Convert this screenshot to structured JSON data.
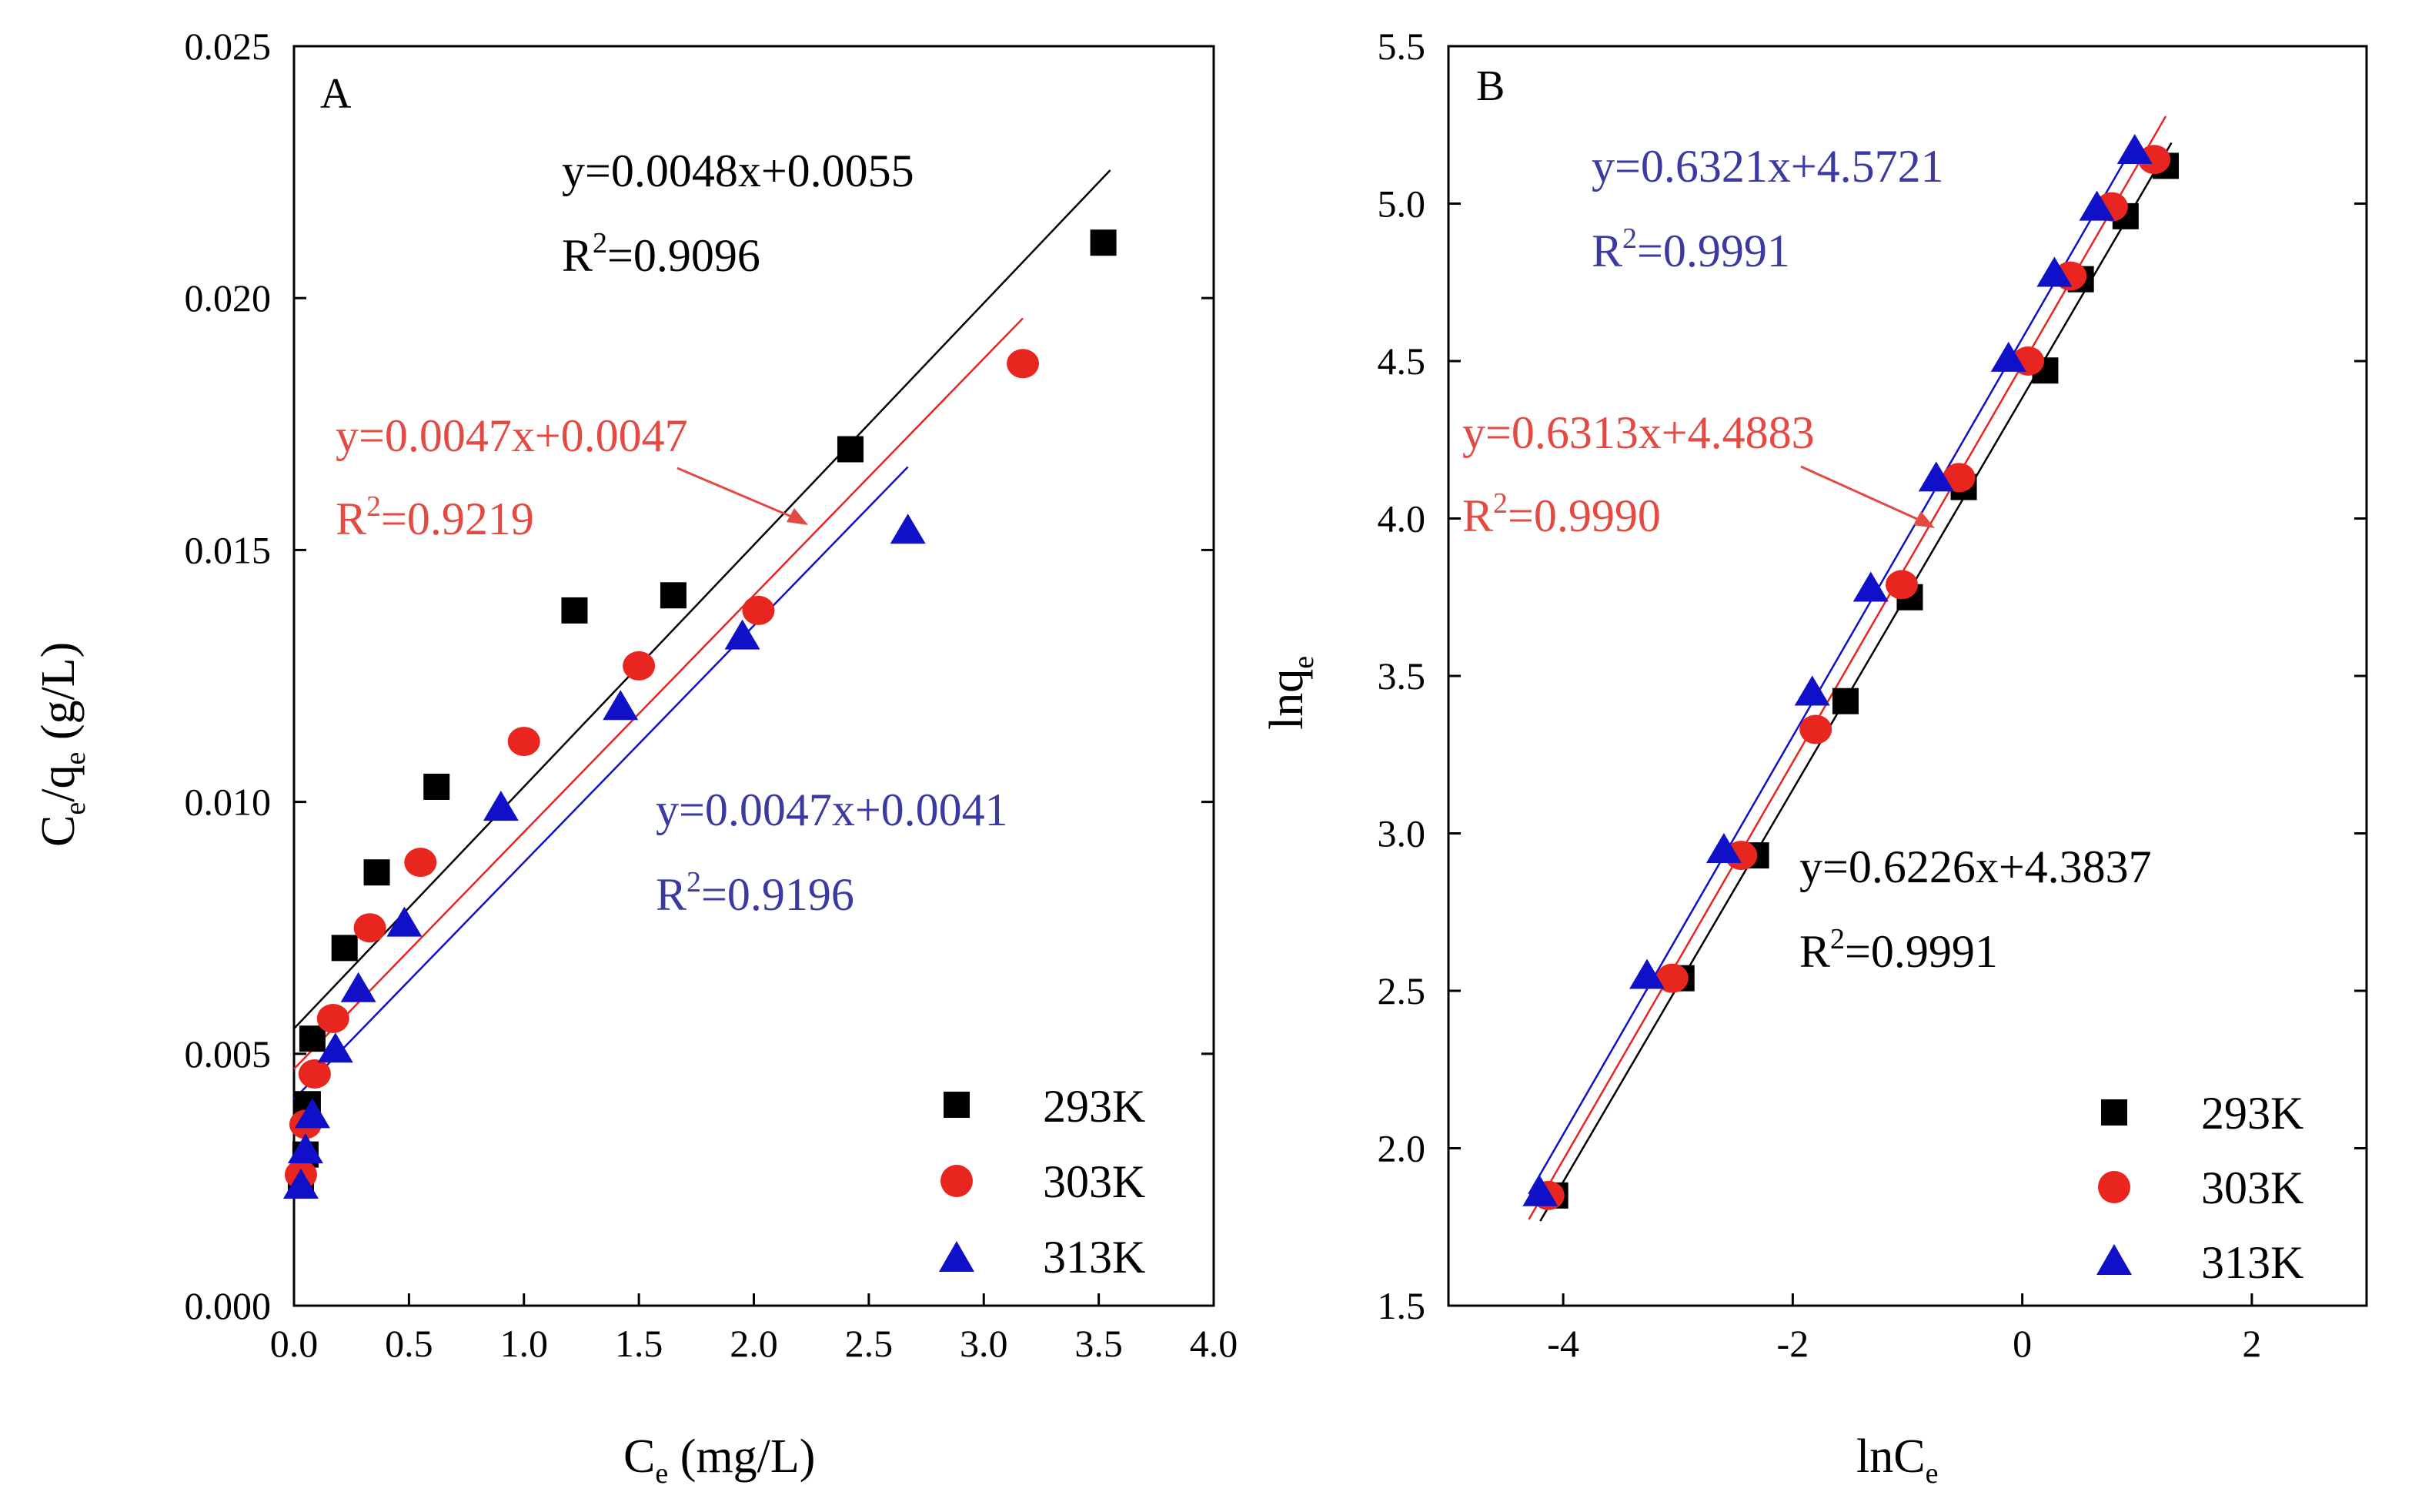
{
  "chart_data": [
    {
      "type": "scatter",
      "panel": "A",
      "xlabel": "C_e (mg/L)",
      "xlabel_main": "C",
      "xlabel_sub": "e",
      "xlabel_unit": " (mg/L)",
      "ylabel": "C_e/q_e (g/L)",
      "ylabel_main1": "C",
      "ylabel_sub1": "e",
      "ylabel_mid": "/q",
      "ylabel_sub2": "e",
      "ylabel_unit": " (g/L)",
      "xlim": [
        0,
        4.0
      ],
      "ylim": [
        0,
        0.025
      ],
      "xticks": [
        0,
        0.5,
        1.0,
        1.5,
        2.0,
        2.5,
        3.0,
        3.5,
        4.0
      ],
      "xtick_labels": [
        "0.0",
        "0.5",
        "1.0",
        "1.5",
        "2.0",
        "2.5",
        "3.0",
        "3.5",
        "4.0"
      ],
      "yticks": [
        0,
        0.005,
        0.01,
        0.015,
        0.02,
        0.025
      ],
      "ytick_labels": [
        "0.000",
        "0.005",
        "0.010",
        "0.015",
        "0.020",
        "0.025"
      ],
      "series": [
        {
          "name": "293K",
          "marker": "square",
          "color": "#000000",
          "points": [
            [
              0.03,
              0.0025
            ],
            [
              0.05,
              0.003
            ],
            [
              0.06,
              0.004
            ],
            [
              0.08,
              0.0053
            ],
            [
              0.22,
              0.0071
            ],
            [
              0.36,
              0.0086
            ],
            [
              0.62,
              0.0103
            ],
            [
              1.22,
              0.0138
            ],
            [
              1.65,
              0.0141
            ],
            [
              2.42,
              0.017
            ],
            [
              3.52,
              0.0211
            ]
          ],
          "fit": {
            "slope": 0.0048,
            "intercept": 0.0055,
            "x_range": [
              0.0,
              3.55
            ],
            "equation": "y=0.0048x+0.0055",
            "r2_label": "R",
            "r2_sup": "2",
            "r2_value": "=0.9096",
            "eq_color": "#000000"
          }
        },
        {
          "name": "303K",
          "marker": "circle",
          "color": "#e8261f",
          "points": [
            [
              0.03,
              0.0026
            ],
            [
              0.05,
              0.0036
            ],
            [
              0.09,
              0.0046
            ],
            [
              0.17,
              0.0057
            ],
            [
              0.33,
              0.0075
            ],
            [
              0.55,
              0.0088
            ],
            [
              1.0,
              0.0112
            ],
            [
              1.5,
              0.0127
            ],
            [
              2.02,
              0.0138
            ],
            [
              3.17,
              0.0187
            ]
          ],
          "fit": {
            "slope": 0.0047,
            "intercept": 0.0047,
            "x_range": [
              0.0,
              3.17
            ],
            "equation": "y=0.0047x+0.0047",
            "r2_label": "R",
            "r2_sup": "2",
            "r2_value": "=0.9219",
            "eq_color": "#e24a42"
          }
        },
        {
          "name": "313K",
          "marker": "triangle",
          "color": "#1010c8",
          "points": [
            [
              0.03,
              0.0024
            ],
            [
              0.05,
              0.0031
            ],
            [
              0.08,
              0.0038
            ],
            [
              0.18,
              0.0051
            ],
            [
              0.28,
              0.0063
            ],
            [
              0.48,
              0.0076
            ],
            [
              0.9,
              0.0099
            ],
            [
              1.42,
              0.0119
            ],
            [
              1.95,
              0.0133
            ],
            [
              2.67,
              0.0154
            ]
          ],
          "fit": {
            "slope": 0.0047,
            "intercept": 0.0041,
            "x_range": [
              0.0,
              2.67
            ],
            "equation": "y=0.0047x+0.0041",
            "r2_label": "R",
            "r2_sup": "2",
            "r2_value": "=0.9196",
            "eq_color": "#3a3aa0"
          }
        }
      ],
      "legend": [
        "293K",
        "303K",
        "313K"
      ],
      "legend_position": "bottom-right"
    },
    {
      "type": "scatter",
      "panel": "B",
      "xlabel": "lnC_e",
      "xlabel_main": "lnC",
      "xlabel_sub": "e",
      "xlabel_unit": "",
      "ylabel": "lnq_e",
      "ylabel_main1": "lnq",
      "ylabel_sub1": "e",
      "ylabel_mid": "",
      "ylabel_sub2": "",
      "ylabel_unit": "",
      "xlim": [
        -5.0,
        3.0
      ],
      "ylim": [
        1.5,
        5.5
      ],
      "xticks": [
        -4,
        -2,
        0,
        2
      ],
      "xtick_labels": [
        "-4",
        "-2",
        "0",
        "2"
      ],
      "yticks": [
        1.5,
        2.0,
        2.5,
        3.0,
        3.5,
        4.0,
        4.5,
        5.0,
        5.5
      ],
      "ytick_labels": [
        "1.5",
        "2.0",
        "2.5",
        "3.0",
        "3.5",
        "4.0",
        "4.5",
        "5.0",
        "5.5"
      ],
      "series": [
        {
          "name": "293K",
          "marker": "square",
          "color": "#000000",
          "points": [
            [
              -4.07,
              1.85
            ],
            [
              -2.97,
              2.54
            ],
            [
              -2.32,
              2.93
            ],
            [
              -1.54,
              3.42
            ],
            [
              -0.98,
              3.75
            ],
            [
              -0.51,
              4.1
            ],
            [
              0.2,
              4.47
            ],
            [
              0.51,
              4.76
            ],
            [
              0.9,
              4.96
            ],
            [
              1.25,
              5.12
            ]
          ],
          "fit": {
            "slope": 0.6226,
            "intercept": 4.3837,
            "x_range": [
              -4.2,
              1.3
            ],
            "equation": "y=0.6226x+4.3837",
            "r2_label": "R",
            "r2_sup": "2",
            "r2_value": "=0.9991",
            "eq_color": "#000000"
          }
        },
        {
          "name": "303K",
          "marker": "circle",
          "color": "#e8261f",
          "points": [
            [
              -4.13,
              1.85
            ],
            [
              -3.05,
              2.54
            ],
            [
              -2.45,
              2.93
            ],
            [
              -1.8,
              3.33
            ],
            [
              -1.05,
              3.79
            ],
            [
              -0.55,
              4.13
            ],
            [
              0.05,
              4.5
            ],
            [
              0.42,
              4.77
            ],
            [
              0.78,
              4.99
            ],
            [
              1.15,
              5.14
            ]
          ],
          "fit": {
            "slope": 0.6313,
            "intercept": 4.4883,
            "x_range": [
              -4.3,
              1.25
            ],
            "equation": "y=0.6313x+4.4883",
            "r2_label": "R",
            "r2_sup": "2",
            "r2_value": "=0.9990",
            "eq_color": "#e24a42"
          }
        },
        {
          "name": "313K",
          "marker": "triangle",
          "color": "#1010c8",
          "points": [
            [
              -4.2,
              1.86
            ],
            [
              -3.27,
              2.55
            ],
            [
              -2.6,
              2.95
            ],
            [
              -1.83,
              3.45
            ],
            [
              -1.32,
              3.78
            ],
            [
              -0.75,
              4.13
            ],
            [
              -0.12,
              4.51
            ],
            [
              0.28,
              4.78
            ],
            [
              0.65,
              4.99
            ],
            [
              0.98,
              5.17
            ]
          ],
          "fit": {
            "slope": 0.6321,
            "intercept": 4.5721,
            "x_range": [
              -4.3,
              1.0
            ],
            "equation": "y=0.6321x+4.5721",
            "r2_label": "R",
            "r2_sup": "2",
            "r2_value": "=0.9991",
            "eq_color": "#3a3aa0"
          }
        }
      ],
      "legend": [
        "293K",
        "303K",
        "313K"
      ],
      "legend_position": "bottom-right"
    }
  ]
}
